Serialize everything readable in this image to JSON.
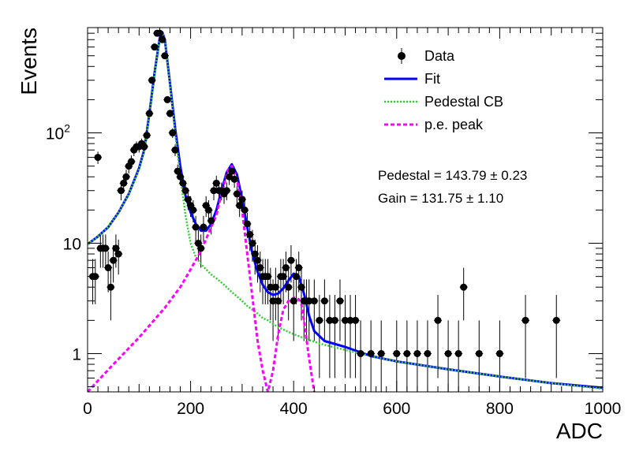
{
  "chart_data": {
    "type": "scatter",
    "title": "",
    "xlabel": "ADC",
    "ylabel": "Events",
    "xlim": [
      0,
      1000
    ],
    "ylim": [
      0.45,
      900
    ],
    "y_scale": "log",
    "x_ticks": [
      0,
      200,
      400,
      600,
      800,
      1000
    ],
    "y_ticks": [
      {
        "value": 1,
        "label": "1"
      },
      {
        "value": 10,
        "label": "10"
      },
      {
        "value": 100,
        "label": "10",
        "sup": "2"
      }
    ],
    "legend": {
      "placement": "top-right",
      "entries": [
        {
          "label": "Data",
          "style": "marker",
          "color": "#000000"
        },
        {
          "label": "Fit",
          "style": "solid",
          "color": "#0000ff"
        },
        {
          "label": "Pedestal CB",
          "style": "dotted",
          "color": "#33cc33"
        },
        {
          "label": "p.e. peak",
          "style": "dashed",
          "color": "#ff00ff"
        }
      ]
    },
    "annotations": [
      "Pedestal = 143.79 ± 0.23",
      "Gain = 131.75 ± 1.10"
    ],
    "series": [
      {
        "name": "Data",
        "kind": "points",
        "color": "#000000",
        "x": [
          10,
          15,
          20,
          25,
          30,
          35,
          40,
          45,
          50,
          55,
          60,
          65,
          70,
          75,
          80,
          85,
          90,
          95,
          100,
          105,
          110,
          115,
          120,
          125,
          130,
          135,
          140,
          145,
          150,
          155,
          160,
          165,
          170,
          175,
          180,
          185,
          190,
          195,
          200,
          205,
          210,
          215,
          220,
          225,
          230,
          235,
          240,
          245,
          250,
          255,
          260,
          265,
          270,
          275,
          280,
          285,
          290,
          295,
          300,
          305,
          310,
          315,
          320,
          325,
          330,
          335,
          340,
          345,
          350,
          355,
          360,
          365,
          370,
          375,
          380,
          385,
          390,
          395,
          400,
          405,
          410,
          415,
          420,
          425,
          430,
          440,
          450,
          460,
          470,
          480,
          490,
          500,
          510,
          520,
          530,
          550,
          570,
          600,
          620,
          640,
          660,
          680,
          700,
          720,
          730,
          760,
          800,
          850,
          910
        ],
        "y": [
          5,
          5,
          60,
          9,
          9,
          9,
          6,
          4,
          7,
          9,
          8,
          30,
          35,
          40,
          50,
          55,
          70,
          75,
          75,
          80,
          75,
          95,
          150,
          300,
          600,
          800,
          800,
          700,
          500,
          200,
          150,
          100,
          70,
          45,
          40,
          35,
          30,
          25,
          22,
          20,
          14,
          10,
          9,
          14,
          22,
          20,
          16,
          30,
          35,
          30,
          30,
          28,
          30,
          40,
          45,
          38,
          28,
          22,
          25,
          20,
          15,
          12,
          10,
          8,
          7,
          6,
          5,
          5,
          5,
          4,
          3,
          4,
          3,
          5,
          5,
          6,
          4,
          7,
          3,
          5,
          6,
          4,
          3,
          3,
          3,
          3,
          2,
          3,
          2,
          2,
          3,
          2,
          2,
          2,
          1,
          1,
          1,
          1,
          1,
          1,
          1,
          2,
          1,
          1,
          4,
          1,
          1,
          2,
          2
        ],
        "y_err": [
          2.2,
          2.2,
          7.7,
          3,
          3,
          3,
          2.4,
          2,
          2.6,
          3,
          2.8,
          5.5,
          5.9,
          6.3,
          7.1,
          7.4,
          8.4,
          8.7,
          8.7,
          8.9,
          8.7,
          9.7,
          12.2,
          17.3,
          24.5,
          28.3,
          28.3,
          26.5,
          22.4,
          14.1,
          12.2,
          10,
          8.4,
          6.7,
          6.3,
          5.9,
          5.5,
          5,
          4.7,
          4.5,
          3.7,
          3.2,
          3,
          3.7,
          4.7,
          4.5,
          4,
          5.5,
          5.9,
          5.5,
          5.5,
          5.3,
          5.5,
          6.3,
          6.7,
          6.2,
          5.3,
          4.7,
          5,
          4.5,
          3.9,
          3.5,
          3.2,
          2.8,
          2.6,
          2.4,
          2.2,
          2.2,
          2.2,
          2,
          1.7,
          2,
          1.7,
          2.2,
          2.2,
          2.4,
          2,
          2.6,
          1.7,
          2.2,
          2.4,
          2,
          1.7,
          1.7,
          1.7,
          1.7,
          1.4,
          1.7,
          1.4,
          1.4,
          1.7,
          1.4,
          1.4,
          1.4,
          1,
          1,
          1,
          1,
          1,
          1,
          1,
          1.4,
          1,
          1,
          2,
          1,
          1,
          1.4,
          1.4
        ]
      },
      {
        "name": "Fit",
        "kind": "line",
        "color": "#0000ff",
        "x": [
          0,
          20,
          40,
          60,
          80,
          100,
          110,
          120,
          130,
          140,
          145,
          150,
          160,
          170,
          180,
          190,
          200,
          210,
          220,
          230,
          240,
          250,
          260,
          270,
          280,
          290,
          300,
          310,
          320,
          330,
          340,
          350,
          360,
          370,
          380,
          390,
          400,
          410,
          420,
          430,
          440,
          460,
          500,
          550,
          600,
          700,
          800,
          900,
          1000
        ],
        "y": [
          9.8,
          11.5,
          14,
          19,
          28,
          48,
          70,
          150,
          350,
          720,
          820,
          700,
          280,
          110,
          50,
          27,
          19,
          15,
          13,
          13,
          15,
          20,
          30,
          44,
          52,
          42,
          25,
          14,
          8,
          5.5,
          4.2,
          3.6,
          3.4,
          3.5,
          3.9,
          4.6,
          5.3,
          5,
          3.5,
          2.2,
          1.6,
          1.3,
          1.15,
          0.95,
          0.85,
          0.72,
          0.62,
          0.54,
          0.49
        ]
      },
      {
        "name": "Pedestal CB",
        "kind": "line",
        "color": "#33cc33",
        "x": [
          0,
          20,
          40,
          60,
          80,
          100,
          110,
          120,
          130,
          140,
          145,
          150,
          160,
          170,
          180,
          190,
          200,
          210,
          220,
          230,
          240,
          250,
          260,
          270,
          280,
          290,
          300,
          310,
          320,
          330,
          340,
          350,
          360,
          380,
          400,
          420,
          440,
          460,
          500,
          550,
          600,
          700,
          800,
          900,
          1000
        ],
        "y": [
          9.8,
          11.5,
          14,
          19,
          28,
          47,
          68,
          145,
          340,
          710,
          815,
          690,
          270,
          100,
          40,
          18,
          10,
          7.5,
          6.5,
          5.8,
          5.2,
          4.8,
          4.4,
          4,
          3.6,
          3.3,
          3,
          2.7,
          2.5,
          2.3,
          2.1,
          2,
          1.85,
          1.65,
          1.5,
          1.38,
          1.28,
          1.2,
          1.08,
          0.95,
          0.85,
          0.72,
          0.62,
          0.54,
          0.48
        ]
      },
      {
        "name": "p.e. peak",
        "kind": "line",
        "color": "#ff00ff",
        "x": [
          0,
          50,
          100,
          150,
          180,
          200,
          220,
          240,
          250,
          260,
          270,
          275,
          280,
          290,
          300,
          310,
          320,
          330,
          340,
          350,
          360,
          370,
          380,
          390,
          400,
          405,
          410,
          415,
          420,
          430,
          440,
          450
        ],
        "y": [
          0.45,
          0.8,
          1.4,
          2.6,
          4,
          5.8,
          8.5,
          14,
          18,
          28,
          42,
          48,
          50,
          38,
          20,
          8,
          3.2,
          1.3,
          0.7,
          0.45,
          0.7,
          1.5,
          2.5,
          3,
          3.2,
          3.2,
          3.1,
          2.8,
          2,
          0.9,
          0.45,
          0.3
        ]
      }
    ]
  }
}
